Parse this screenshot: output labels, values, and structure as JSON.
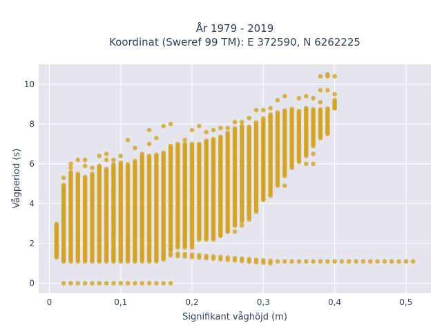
{
  "chart_data": {
    "type": "scatter",
    "title_line1": "År 1979 - 2019",
    "title_line2": "Koordinat (Sweref 99 TM): E 372590, N 6262225",
    "xlabel": "Signifikant våghöjd (m)",
    "ylabel": "Vågperiod (s)",
    "xlim": [
      -0.015,
      0.535
    ],
    "ylim": [
      -0.5,
      11.0
    ],
    "x_ticks": [
      0,
      0.1,
      0.2,
      0.3,
      0.4,
      0.5
    ],
    "x_tick_labels": [
      "0",
      "0,1",
      "0,2",
      "0,3",
      "0,4",
      "0,5"
    ],
    "y_ticks": [
      0,
      2,
      4,
      6,
      8,
      10
    ],
    "y_tick_labels": [
      "0",
      "2",
      "4",
      "6",
      "8",
      "10"
    ],
    "grid": true,
    "background": "#e5e5f0",
    "marker_color": "#d4a21c",
    "columns": [
      {
        "x": 0.01,
        "ymin": 1.3,
        "ymax": 3.0
      },
      {
        "x": 0.02,
        "ymin": 1.1,
        "ymax": 5.0
      },
      {
        "x": 0.03,
        "ymin": 1.1,
        "ymax": 5.6
      },
      {
        "x": 0.04,
        "ymin": 1.1,
        "ymax": 5.5
      },
      {
        "x": 0.05,
        "ymin": 1.1,
        "ymax": 5.4
      },
      {
        "x": 0.06,
        "ymin": 1.1,
        "ymax": 5.5
      },
      {
        "x": 0.07,
        "ymin": 1.1,
        "ymax": 5.9
      },
      {
        "x": 0.08,
        "ymin": 1.1,
        "ymax": 5.8
      },
      {
        "x": 0.09,
        "ymin": 1.1,
        "ymax": 6.0
      },
      {
        "x": 0.1,
        "ymin": 1.1,
        "ymax": 6.1
      },
      {
        "x": 0.11,
        "ymin": 1.1,
        "ymax": 6.0
      },
      {
        "x": 0.12,
        "ymin": 1.1,
        "ymax": 6.2
      },
      {
        "x": 0.13,
        "ymin": 1.1,
        "ymax": 6.4
      },
      {
        "x": 0.14,
        "ymin": 1.1,
        "ymax": 6.3
      },
      {
        "x": 0.15,
        "ymin": 1.1,
        "ymax": 6.5
      },
      {
        "x": 0.16,
        "ymin": 1.2,
        "ymax": 6.6
      },
      {
        "x": 0.17,
        "ymin": 1.7,
        "ymax": 6.9
      },
      {
        "x": 0.18,
        "ymin": 1.8,
        "ymax": 7.0
      },
      {
        "x": 0.19,
        "ymin": 1.8,
        "ymax": 7.0
      },
      {
        "x": 0.2,
        "ymin": 1.8,
        "ymax": 7.0
      },
      {
        "x": 0.21,
        "ymin": 2.2,
        "ymax": 7.0
      },
      {
        "x": 0.22,
        "ymin": 2.2,
        "ymax": 7.2
      },
      {
        "x": 0.23,
        "ymin": 2.2,
        "ymax": 7.3
      },
      {
        "x": 0.24,
        "ymin": 2.4,
        "ymax": 7.4
      },
      {
        "x": 0.25,
        "ymin": 2.6,
        "ymax": 7.6
      },
      {
        "x": 0.26,
        "ymin": 2.9,
        "ymax": 7.8
      },
      {
        "x": 0.27,
        "ymin": 3.1,
        "ymax": 7.9
      },
      {
        "x": 0.28,
        "ymin": 3.3,
        "ymax": 7.9
      },
      {
        "x": 0.29,
        "ymin": 3.6,
        "ymax": 8.1
      },
      {
        "x": 0.3,
        "ymin": 4.2,
        "ymax": 8.3
      },
      {
        "x": 0.31,
        "ymin": 4.4,
        "ymax": 8.5
      },
      {
        "x": 0.32,
        "ymin": 4.9,
        "ymax": 8.6
      },
      {
        "x": 0.33,
        "ymin": 5.4,
        "ymax": 8.7
      },
      {
        "x": 0.34,
        "ymin": 5.8,
        "ymax": 8.8
      },
      {
        "x": 0.35,
        "ymin": 6.1,
        "ymax": 8.7
      },
      {
        "x": 0.36,
        "ymin": 6.4,
        "ymax": 8.8
      },
      {
        "x": 0.37,
        "ymin": 6.9,
        "ymax": 8.8
      },
      {
        "x": 0.38,
        "ymin": 7.3,
        "ymax": 8.8
      },
      {
        "x": 0.39,
        "ymin": 7.5,
        "ymax": 8.8
      },
      {
        "x": 0.4,
        "ymin": 8.8,
        "ymax": 9.2
      }
    ],
    "extra_points": [
      [
        0.01,
        1.5
      ],
      [
        0.01,
        1.7
      ],
      [
        0.01,
        1.9
      ],
      [
        0.02,
        5.3
      ],
      [
        0.03,
        5.8
      ],
      [
        0.03,
        6.0
      ],
      [
        0.04,
        6.2
      ],
      [
        0.05,
        5.9
      ],
      [
        0.05,
        6.2
      ],
      [
        0.06,
        5.8
      ],
      [
        0.07,
        6.4
      ],
      [
        0.08,
        6.5
      ],
      [
        0.08,
        6.2
      ],
      [
        0.09,
        6.2
      ],
      [
        0.1,
        6.4
      ],
      [
        0.11,
        7.2
      ],
      [
        0.12,
        6.8
      ],
      [
        0.13,
        6.5
      ],
      [
        0.14,
        6.4
      ],
      [
        0.14,
        7.0
      ],
      [
        0.14,
        7.7
      ],
      [
        0.15,
        7.3
      ],
      [
        0.16,
        7.9
      ],
      [
        0.17,
        6.8
      ],
      [
        0.17,
        8.0
      ],
      [
        0.19,
        7.2
      ],
      [
        0.2,
        7.7
      ],
      [
        0.21,
        7.9
      ],
      [
        0.22,
        7.6
      ],
      [
        0.23,
        7.7
      ],
      [
        0.24,
        7.8
      ],
      [
        0.25,
        7.8
      ],
      [
        0.26,
        8.1
      ],
      [
        0.27,
        8.1
      ],
      [
        0.28,
        8.3
      ],
      [
        0.29,
        8.7
      ],
      [
        0.3,
        8.7
      ],
      [
        0.31,
        8.8
      ],
      [
        0.32,
        9.2
      ],
      [
        0.33,
        9.4
      ],
      [
        0.35,
        9.3
      ],
      [
        0.36,
        9.4
      ],
      [
        0.37,
        9.3
      ],
      [
        0.38,
        9.7
      ],
      [
        0.38,
        10.4
      ],
      [
        0.39,
        10.4
      ],
      [
        0.39,
        10.5
      ],
      [
        0.4,
        10.4
      ],
      [
        0.4,
        9.5
      ],
      [
        0.39,
        9.7
      ],
      [
        0.38,
        9.1
      ],
      [
        0.37,
        6.5
      ],
      [
        0.37,
        6.0
      ],
      [
        0.36,
        6.0
      ],
      [
        0.33,
        4.9
      ],
      [
        0.3,
        4.2
      ],
      [
        0.29,
        4.4
      ],
      [
        0.28,
        3.2
      ],
      [
        0.27,
        2.9
      ],
      [
        0.26,
        2.6
      ],
      [
        0.25,
        2.6
      ],
      [
        0.24,
        2.4
      ],
      [
        0.17,
        1.7
      ],
      [
        0.01,
        2.8
      ],
      [
        0.39,
        7.8
      ],
      [
        0.4,
        8.8
      ],
      [
        0.4,
        9.1
      ]
    ],
    "low_band": {
      "x_start": 0.16,
      "x_end": 0.51,
      "step": 0.01,
      "y_start": 1.55,
      "y_end": 1.1
    },
    "zero_band": {
      "x_start": 0.02,
      "x_end": 0.17,
      "step": 0.01,
      "y": 0.0
    }
  }
}
